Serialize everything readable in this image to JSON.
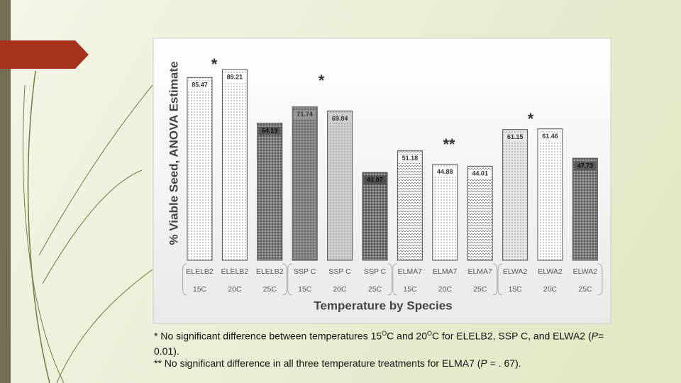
{
  "chart_data": {
    "type": "bar",
    "y_label": "% Viable Seed, ANOVA Estimate",
    "x_label": "Temperature by Species",
    "categories": [
      "ELELB2",
      "ELELB2",
      "ELELB2",
      "SSP C",
      "SSP C",
      "SSP C",
      "ELMA7",
      "ELMA7",
      "ELMA7",
      "ELWA2",
      "ELWA2",
      "ELWA2"
    ],
    "temperatures": [
      "15C",
      "20C",
      "25C",
      "15C",
      "20C",
      "25C",
      "15C",
      "20C",
      "25C",
      "15C",
      "20C",
      "25C"
    ],
    "values": [
      85.47,
      89.21,
      64.19,
      71.74,
      69.84,
      41.07,
      51.18,
      44.88,
      44.01,
      61.15,
      61.46,
      47.73
    ],
    "colors": [
      "#ffffff",
      "#ffffff",
      "#555555",
      "#9a9a9a",
      "#cfcfcf",
      "#4a4a4a",
      "#ffffff",
      "#ffffff",
      "#ffffff",
      "#e6e6e6",
      "#ffffff",
      "#555555"
    ],
    "ylim": [
      0,
      100
    ],
    "annotations": [
      "*",
      "*",
      "**",
      "*"
    ]
  },
  "footnote_1": [
    "* No significant difference between temperatures 15",
    "O",
    "C and 20",
    "O",
    "C for ELELB2, SSP C, and ELWA2 (",
    "P",
    "= 0.01)."
  ],
  "footnote_2": [
    "** No significant difference in all three temperature treatments for ELMA7 (",
    "P",
    " = . 67)."
  ]
}
